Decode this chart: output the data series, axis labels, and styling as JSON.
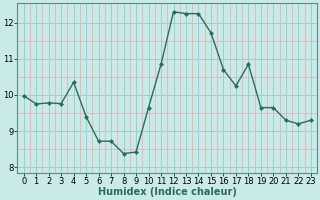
{
  "x": [
    0,
    1,
    2,
    3,
    4,
    5,
    6,
    7,
    8,
    9,
    10,
    11,
    12,
    13,
    14,
    15,
    16,
    17,
    18,
    19,
    20,
    21,
    22,
    23
  ],
  "y": [
    9.98,
    9.75,
    9.78,
    9.76,
    10.35,
    9.4,
    8.72,
    8.72,
    8.38,
    8.42,
    9.65,
    10.85,
    12.3,
    12.25,
    12.25,
    11.72,
    10.7,
    10.25,
    10.85,
    9.65,
    9.65,
    9.3,
    9.2,
    9.3
  ],
  "line_color": "#2d6b5e",
  "marker": "D",
  "markersize": 2,
  "linewidth": 1.0,
  "xlabel": "Humidex (Indice chaleur)",
  "xlim_min": -0.5,
  "xlim_max": 23.5,
  "ylim_min": 7.85,
  "ylim_max": 12.55,
  "yticks": [
    8,
    9,
    10,
    11,
    12
  ],
  "xticks": [
    0,
    1,
    2,
    3,
    4,
    5,
    6,
    7,
    8,
    9,
    10,
    11,
    12,
    13,
    14,
    15,
    16,
    17,
    18,
    19,
    20,
    21,
    22,
    23
  ],
  "bg_color": "#caeaea",
  "minor_grid_color": "#e8aaaa",
  "major_grid_color": "#9ecece",
  "tick_fontsize": 6,
  "xlabel_fontsize": 7
}
